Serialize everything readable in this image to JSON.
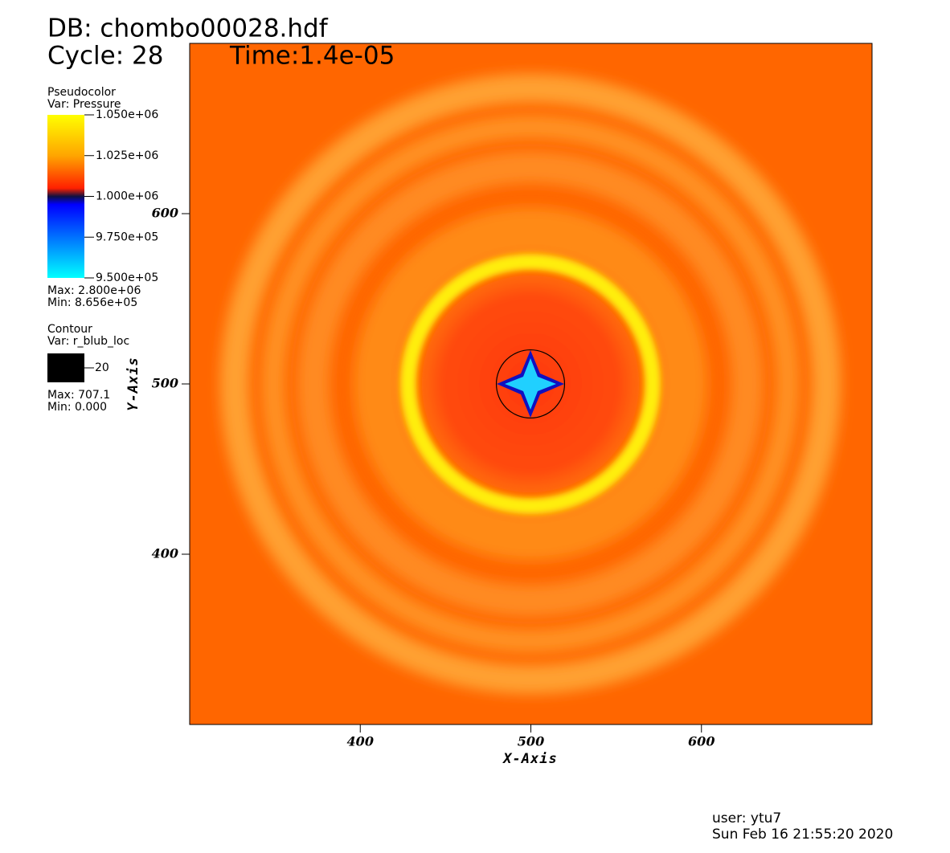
{
  "chart_data": {
    "type": "pseudocolor",
    "db": "DB: chombo00028.hdf",
    "cycle": "Cycle: 28",
    "time": "Time:1.4e-05",
    "x_label": "X-Axis",
    "y_label": "Y-Axis",
    "xlim": [
      300,
      700
    ],
    "ylim": [
      300,
      700
    ],
    "xticks": [
      400,
      500,
      600
    ],
    "yticks": [
      400,
      500,
      600
    ],
    "pseudocolor": {
      "title": "Pseudocolor",
      "var": "Var: Pressure",
      "range": [
        950000,
        1050000
      ],
      "ticks": [
        {
          "value": 1050000,
          "label": "1.050e+06"
        },
        {
          "value": 1025000,
          "label": "1.025e+06"
        },
        {
          "value": 1000000,
          "label": "1.000e+06"
        },
        {
          "value": 975000,
          "label": "9.750e+05"
        },
        {
          "value": 950000,
          "label": "9.500e+05"
        }
      ],
      "max": "Max: 2.800e+06",
      "min": "Min: 8.656e+05"
    },
    "contour": {
      "title": "Contour",
      "var": "Var: r_blub_loc",
      "level": 20,
      "color": "#000000",
      "max": "Max: 707.1",
      "min": "Min: 0.000"
    },
    "user": "user: ytu7",
    "date": "Sun Feb 16 21:55:20 2020"
  }
}
